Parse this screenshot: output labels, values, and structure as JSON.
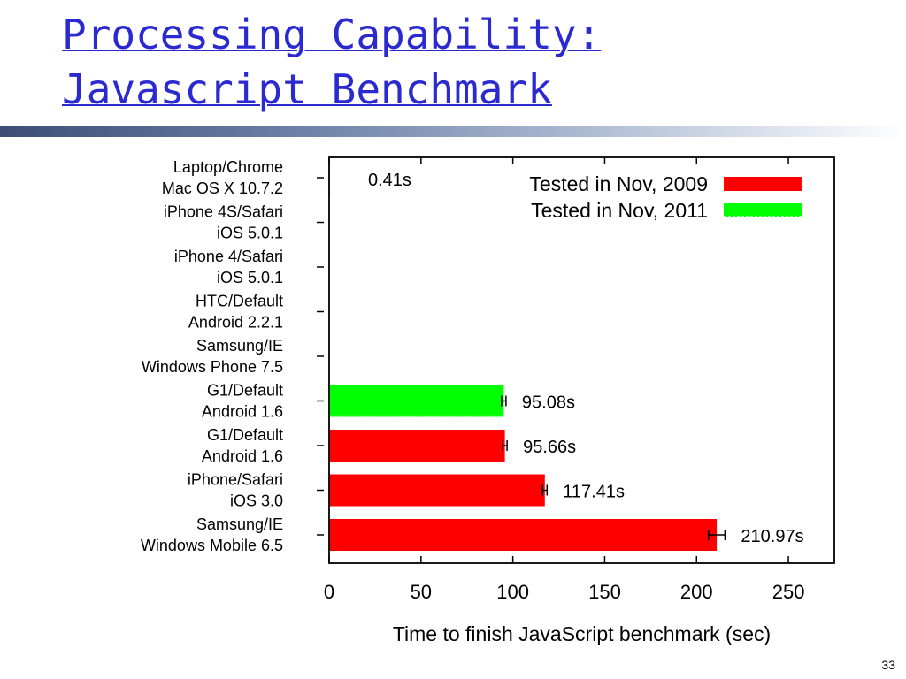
{
  "slide": {
    "title_line1": "Processing Capability:",
    "title_line2": "Javascript Benchmark",
    "page_number": "33"
  },
  "chart_data": {
    "type": "bar",
    "orientation": "horizontal",
    "title": "",
    "xlabel": "Time to finish JavaScript benchmark (sec)",
    "ylabel": "",
    "xlim": [
      0,
      275
    ],
    "xticks": [
      0,
      50,
      100,
      150,
      200,
      250
    ],
    "grid": false,
    "legend_position": "top-right",
    "colors": {
      "nov2009": "#ff0000",
      "nov2011": "#00ff00"
    },
    "series": [
      {
        "name": "Tested in Nov, 2009",
        "color": "#ff0000"
      },
      {
        "name": "Tested in Nov, 2011",
        "color": "#00ff00",
        "dashed": true
      }
    ],
    "bars": [
      {
        "category": [
          "Laptop/Chrome",
          "Mac OS X 10.7.2"
        ],
        "value": 0.41,
        "series": 1,
        "label": "0.41s",
        "error": 0
      },
      {
        "category": [
          "iPhone 4S/Safari",
          "iOS 5.0.1"
        ],
        "value": 0,
        "series": 1,
        "label": "",
        "error": 0
      },
      {
        "category": [
          "iPhone 4/Safari",
          "iOS 5.0.1"
        ],
        "value": 0,
        "series": 1,
        "label": "",
        "error": 0
      },
      {
        "category": [
          "HTC/Default",
          "Android 2.2.1"
        ],
        "value": 0,
        "series": 1,
        "label": "",
        "error": 0
      },
      {
        "category": [
          "Samsung/IE",
          "Windows Phone 7.5"
        ],
        "value": 0,
        "series": 1,
        "label": "",
        "error": 0
      },
      {
        "category": [
          "G1/Default",
          "Android 1.6"
        ],
        "value": 95.08,
        "series": 1,
        "label": "95.08s",
        "error": 1.2
      },
      {
        "category": [
          "G1/Default",
          "Android 1.6"
        ],
        "value": 95.66,
        "series": 0,
        "label": "95.66s",
        "error": 1.2
      },
      {
        "category": [
          "iPhone/Safari",
          "iOS 3.0"
        ],
        "value": 117.41,
        "series": 0,
        "label": "117.41s",
        "error": 1.2
      },
      {
        "category": [
          "Samsung/IE",
          "Windows Mobile 6.5"
        ],
        "value": 210.97,
        "series": 0,
        "label": "210.97s",
        "error": 4.5
      }
    ]
  }
}
